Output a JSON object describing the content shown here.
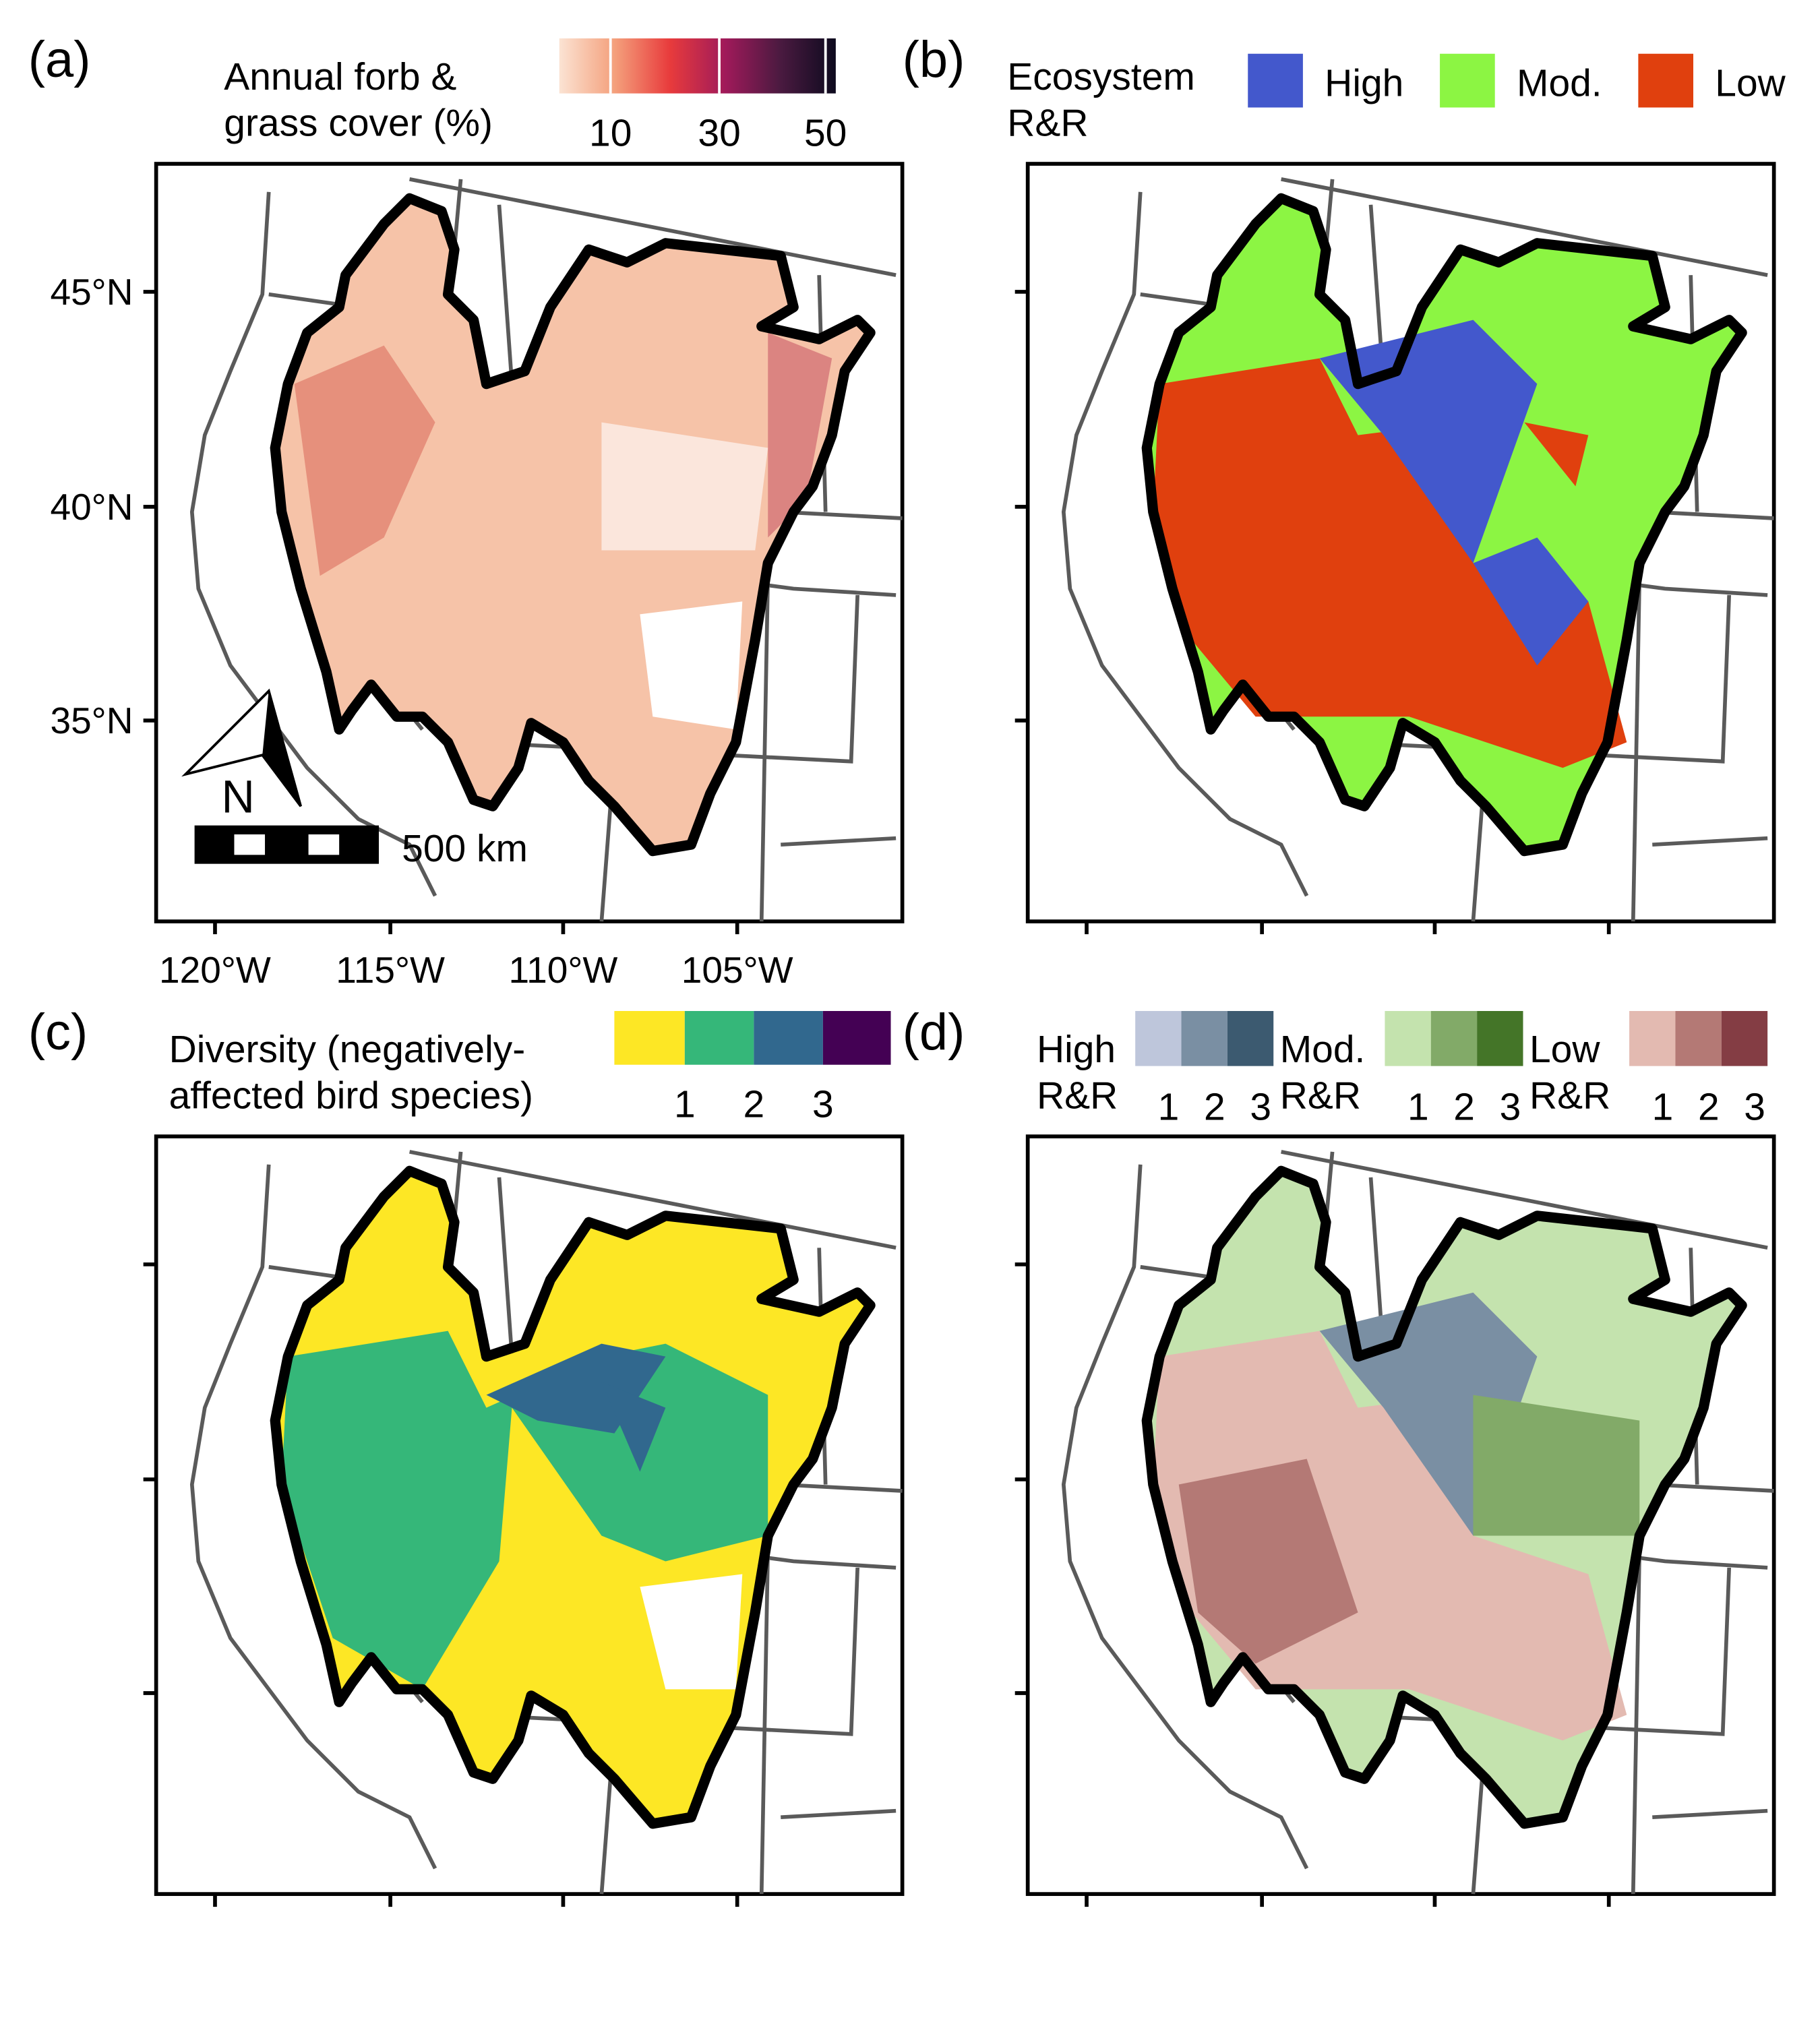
{
  "panels": {
    "a": {
      "tag": "(a)",
      "legend_title_line1": "Annual forb &",
      "legend_title_line2": "grass cover (%)",
      "legend_ticks": [
        "10",
        "30",
        "50"
      ],
      "colors": [
        "#fbe3d3",
        "#f4a07c",
        "#e83b3c",
        "#a01a5a",
        "#4a1a40",
        "#0d0a1e"
      ],
      "scale_bar_label": "500 km",
      "north_label": "N"
    },
    "b": {
      "tag": "(b)",
      "legend_title_line1": "Ecosystem",
      "legend_title_line2": "R&R",
      "items": [
        {
          "label": "High",
          "color": "#4358cc"
        },
        {
          "label": "Mod.",
          "color": "#8cf543"
        },
        {
          "label": "Low",
          "color": "#e0400e"
        }
      ]
    },
    "c": {
      "tag": "(c)",
      "legend_title_line1": "Diversity (negatively-",
      "legend_title_line2": "affected bird species)",
      "colors": [
        "#fde725",
        "#35b779",
        "#31688e",
        "#440154"
      ],
      "legend_ticks": [
        "1",
        "2",
        "3"
      ]
    },
    "d": {
      "tag": "(d)",
      "groups": [
        {
          "label1": "High",
          "label2": "R&R",
          "colors": [
            "#bec6db",
            "#7a8fa3",
            "#3c5a70"
          ],
          "ticks": [
            "1",
            "2",
            "3"
          ]
        },
        {
          "label1": "Mod.",
          "label2": "R&R",
          "colors": [
            "#c4e3ae",
            "#82aa68",
            "#447528"
          ],
          "ticks": [
            "1",
            "2",
            "3"
          ]
        },
        {
          "label1": "Low",
          "label2": "R&R",
          "colors": [
            "#e3bab1",
            "#b47975",
            "#843d44"
          ],
          "ticks": [
            "1",
            "2",
            "3"
          ]
        }
      ]
    }
  },
  "axes": {
    "y_ticks": [
      "45°N",
      "40°N",
      "35°N"
    ],
    "x_ticks": [
      "120°W",
      "115°W",
      "110°W",
      "105°W"
    ]
  }
}
